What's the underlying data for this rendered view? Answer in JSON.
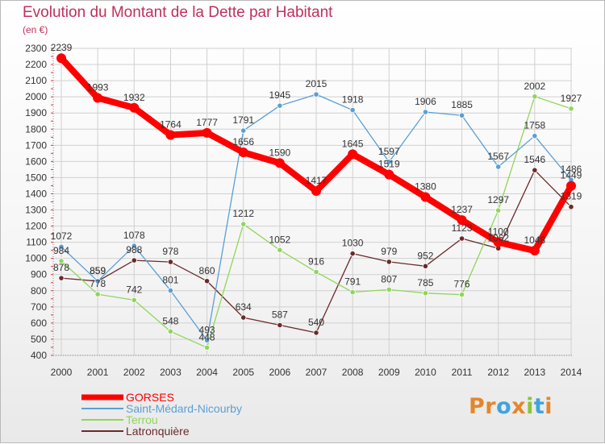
{
  "header": {
    "title": "Evolution du Montant de la Dette par Habitant",
    "unit": "(en €)"
  },
  "brand": {
    "text": "Proxiti"
  },
  "colors": {
    "title": "#c0305c",
    "gorses": "#ff0000",
    "saint_medard": "#5a9fd4",
    "terrou": "#8fd65a",
    "latronquiere": "#6b2a2a"
  },
  "chart_data": {
    "type": "line",
    "title": "Evolution du Montant de la Dette par Habitant",
    "ylabel": "(en €)",
    "ylim": [
      400,
      2300
    ],
    "yticks": [
      400,
      500,
      600,
      700,
      800,
      900,
      1000,
      1100,
      1200,
      1300,
      1400,
      1500,
      1600,
      1700,
      1800,
      1900,
      2000,
      2100,
      2200,
      2300
    ],
    "x": [
      "2000",
      "2001",
      "2002",
      "2003",
      "2004",
      "2005",
      "2006",
      "2007",
      "2008",
      "2009",
      "2010",
      "2011",
      "2012",
      "2013",
      "2014"
    ],
    "grid": true,
    "legend": "bottom-left",
    "series": [
      {
        "name": "GORSES",
        "color": "#ff0000",
        "values": [
          2239,
          1993,
          1932,
          1764,
          1777,
          1656,
          1590,
          1417,
          1645,
          1519,
          1380,
          1237,
          1100,
          1048,
          1449
        ]
      },
      {
        "name": "Saint-Médard-Nicourby",
        "color": "#5a9fd4",
        "values": [
          1072,
          859,
          1078,
          801,
          493,
          1791,
          1945,
          2015,
          1918,
          1597,
          1906,
          1885,
          1567,
          1758,
          1486
        ]
      },
      {
        "name": "Terrou",
        "color": "#8fd65a",
        "values": [
          984,
          778,
          742,
          548,
          448,
          1212,
          1052,
          916,
          791,
          807,
          785,
          776,
          1297,
          2002,
          1927
        ]
      },
      {
        "name": "Latronquière",
        "color": "#6b2a2a",
        "values": [
          878,
          859,
          988,
          978,
          860,
          634,
          587,
          540,
          1030,
          979,
          952,
          1123,
          1062,
          1546,
          1319
        ]
      }
    ]
  }
}
